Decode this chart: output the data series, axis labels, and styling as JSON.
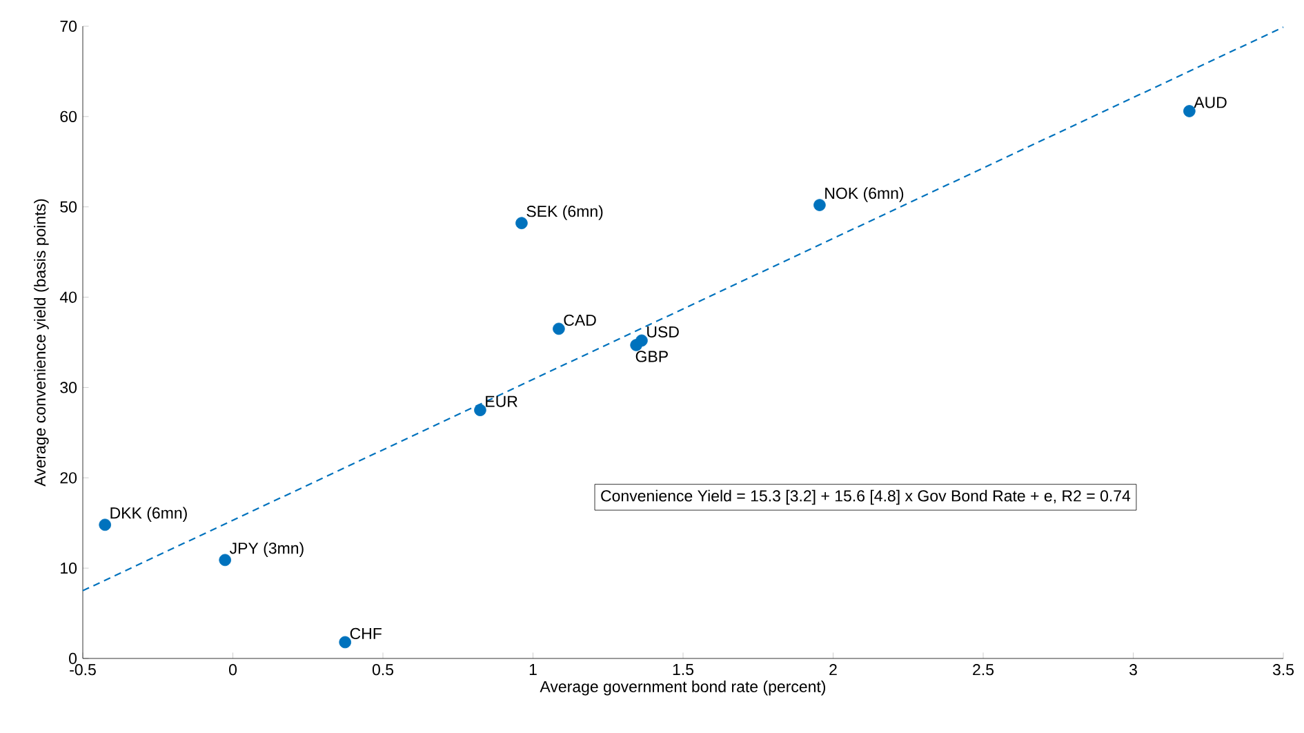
{
  "chart_data": {
    "type": "scatter",
    "xlabel": "Average government bond rate (percent)",
    "ylabel": "Average convenience yield (basis points)",
    "xlim": [
      -0.5,
      3.5
    ],
    "ylim": [
      0,
      70
    ],
    "xticks": [
      -0.5,
      0,
      0.5,
      1,
      1.5,
      2,
      2.5,
      3,
      3.5
    ],
    "yticks": [
      0,
      10,
      20,
      30,
      40,
      50,
      60,
      70
    ],
    "marker": "circle",
    "series": [
      {
        "color": "#0072bd",
        "x": [
          -0.426,
          -0.026,
          0.374,
          0.824,
          0.962,
          1.086,
          1.344,
          1.362,
          1.955,
          3.187
        ],
        "values": [
          14.8,
          10.9,
          1.8,
          27.5,
          48.2,
          36.5,
          34.7,
          35.2,
          50.2,
          60.6
        ]
      },
      {
        "type": "line",
        "color": "#0072bd",
        "marker": "none",
        "line_style": "dashed",
        "x": [
          -0.5,
          3.5
        ],
        "values": [
          7.5,
          69.9
        ]
      }
    ],
    "annotations": [
      {
        "text": "DKK (6mn)",
        "x": -0.426,
        "y": 14.8
      },
      {
        "text": "JPY (3mn)",
        "x": -0.026,
        "y": 10.9
      },
      {
        "text": "CHF",
        "x": 0.374,
        "y": 1.8
      },
      {
        "text": "EUR",
        "x": 0.824,
        "y": 27.5
      },
      {
        "text": "SEK (6mn)",
        "x": 0.962,
        "y": 48.2
      },
      {
        "text": "CAD",
        "x": 1.086,
        "y": 36.5
      },
      {
        "text": "GBP",
        "x": 1.344,
        "y": 34.7
      },
      {
        "text": "USD",
        "x": 1.362,
        "y": 35.2
      },
      {
        "text": "NOK (6mn)",
        "x": 1.955,
        "y": 50.2
      },
      {
        "text": "AUD",
        "x": 3.187,
        "y": 60.6
      },
      "Convenience Yield = 15.3 [3.2] + 15.6 [4.8] x Gov Bond Rate + e, R2 = 0.74"
    ]
  }
}
